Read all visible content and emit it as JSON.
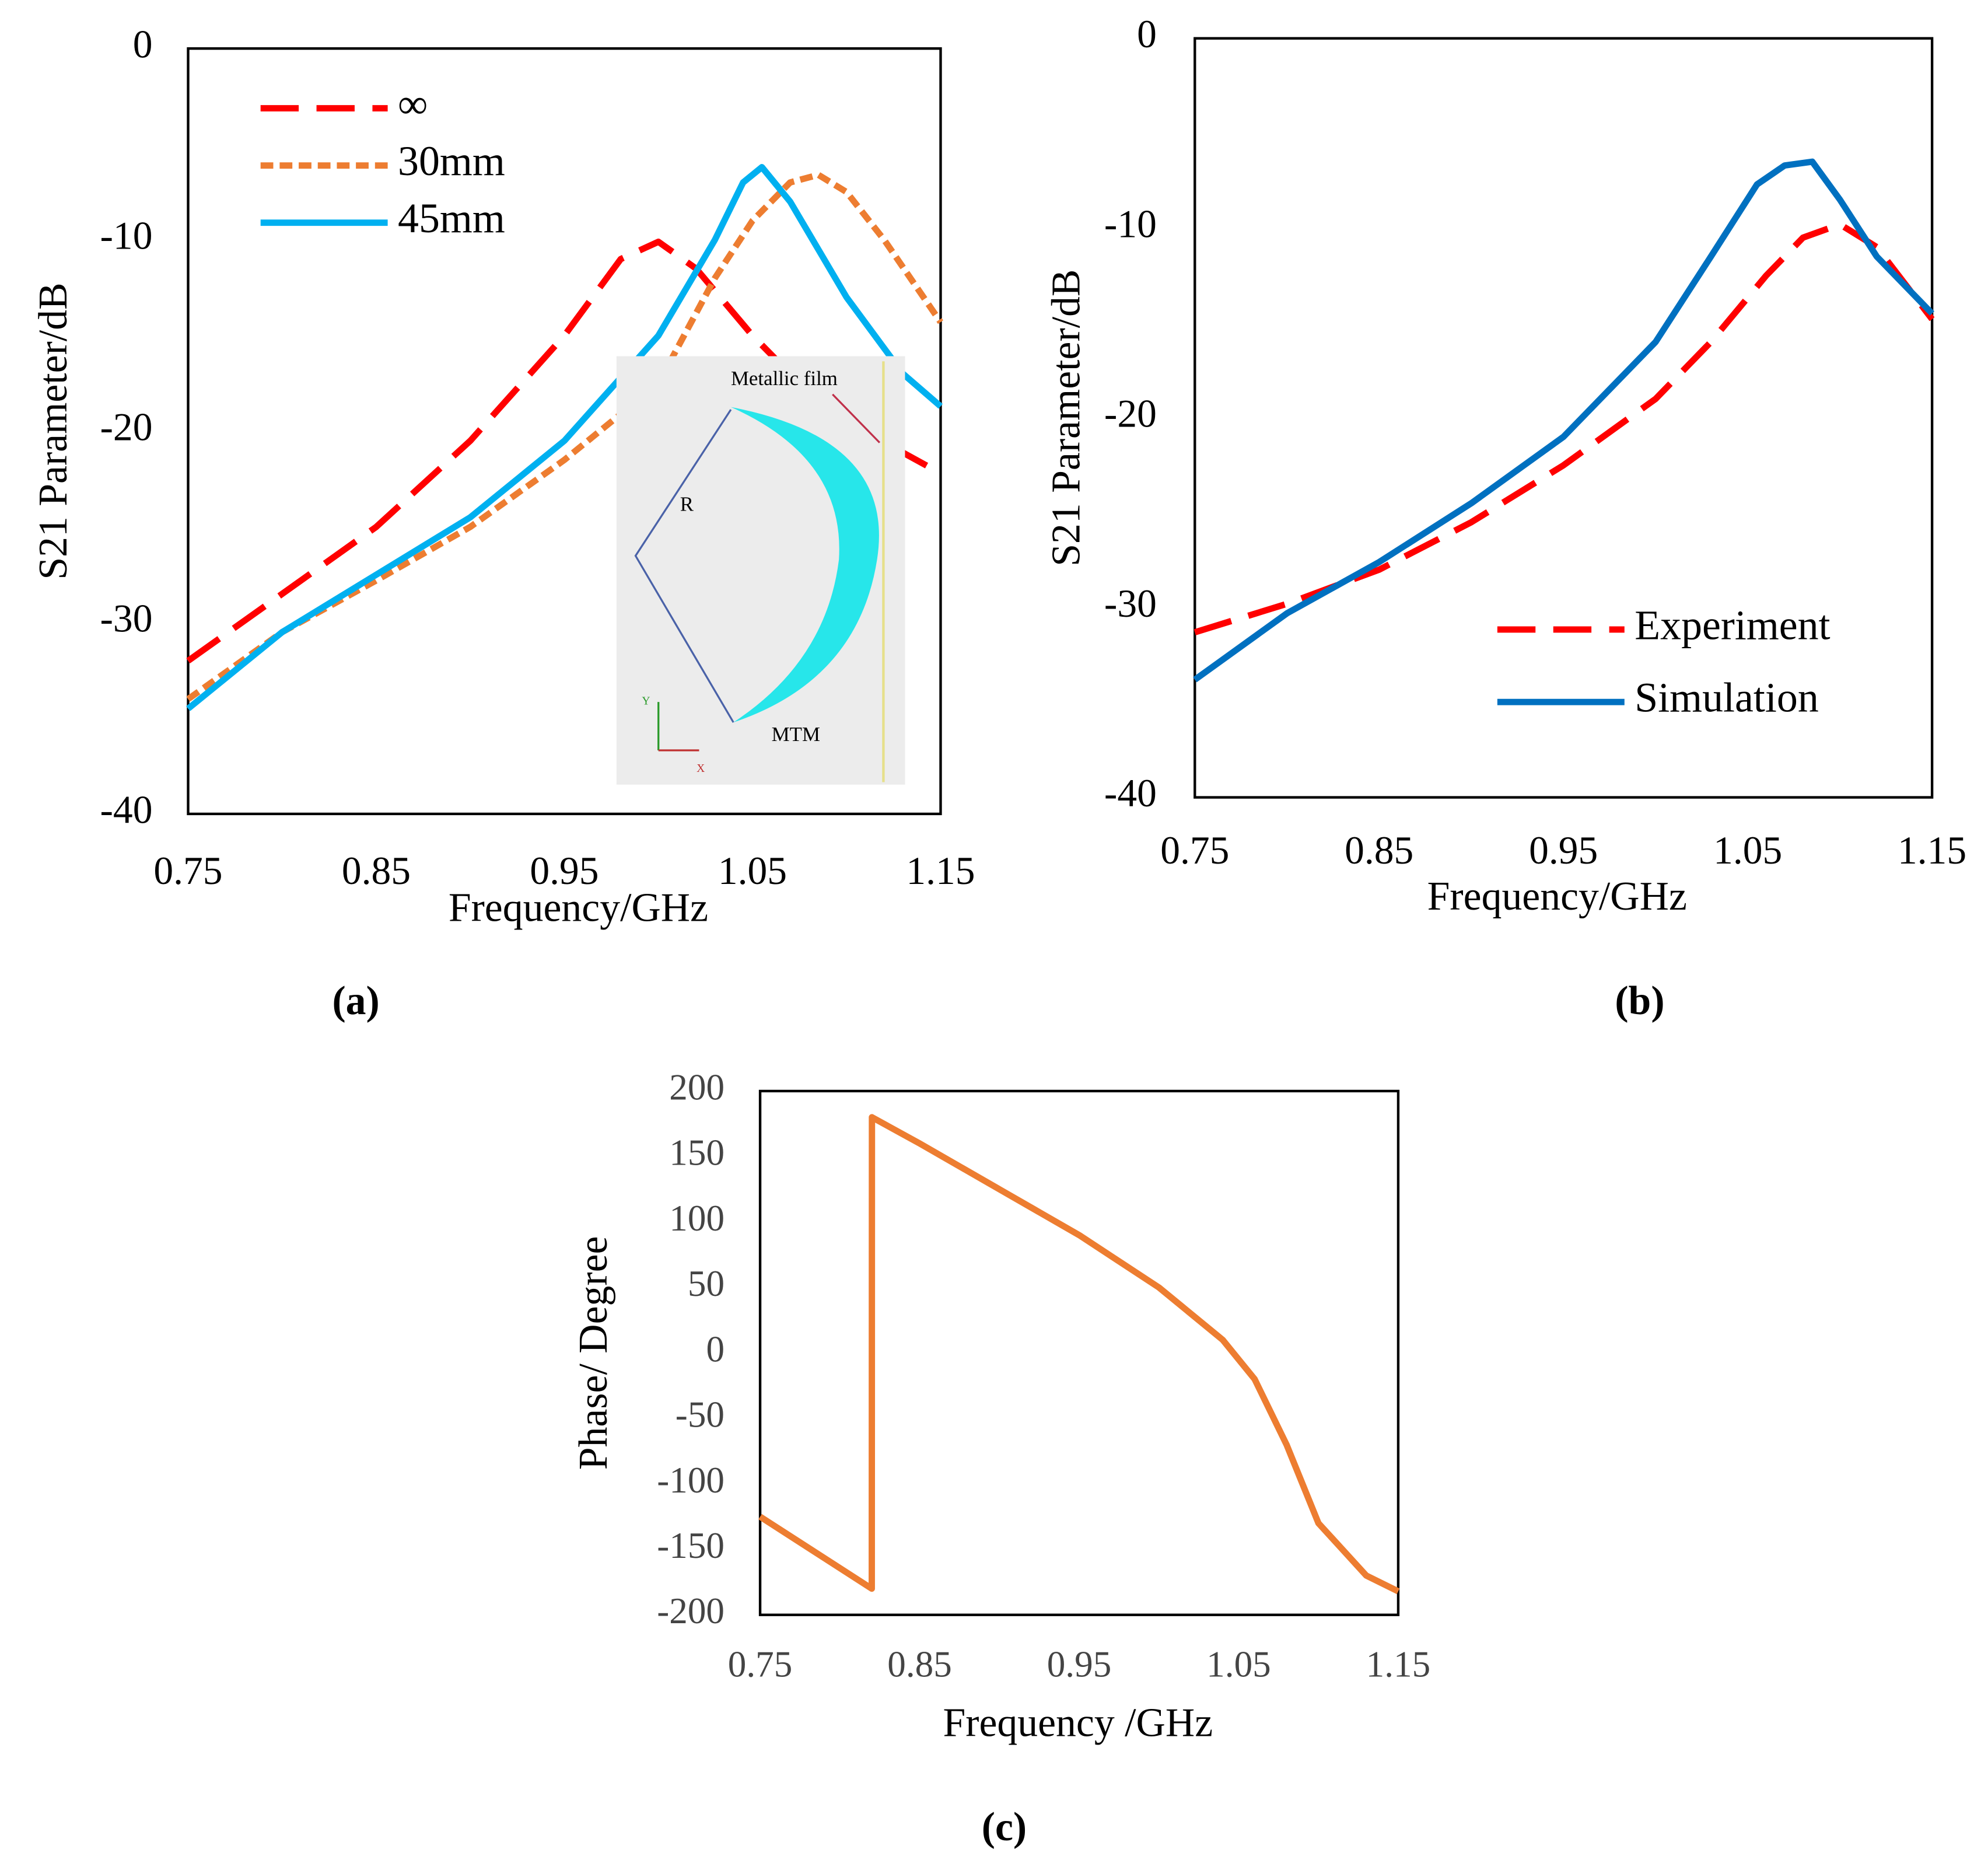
{
  "chart_data": [
    {
      "type": "line",
      "caption": "(a)",
      "y_label": "S21 Parameter/dB",
      "x_label": "Frequency/GHz",
      "xlim": [
        0.75,
        1.15
      ],
      "xticks": [
        0.75,
        0.85,
        0.95,
        1.05,
        1.15
      ],
      "ylim": [
        -40,
        0
      ],
      "yticks": [
        0,
        -10,
        -20,
        -30,
        -40
      ],
      "legend": "top-left",
      "annotations": [
        "Metallic film",
        "R",
        "MTM",
        "Y",
        "X"
      ],
      "series": [
        {
          "name": "∞",
          "color": "#ff0000",
          "dash": "dashed",
          "x": [
            0.75,
            0.8,
            0.85,
            0.9,
            0.95,
            0.98,
            1.0,
            1.02,
            1.05,
            1.08,
            1.1,
            1.15
          ],
          "values": [
            -32,
            -28.5,
            -25,
            -20.5,
            -15,
            -11,
            -10.1,
            -11.5,
            -15,
            -18,
            -19.5,
            -22.2
          ]
        },
        {
          "name": "30mm",
          "color": "#ed7d31",
          "dash": "dotted",
          "x": [
            0.75,
            0.8,
            0.85,
            0.9,
            0.95,
            1.0,
            1.03,
            1.05,
            1.07,
            1.085,
            1.1,
            1.12,
            1.15
          ],
          "values": [
            -34,
            -30.5,
            -27.8,
            -25,
            -21.5,
            -17.5,
            -12,
            -9,
            -7,
            -6.6,
            -7.5,
            -10,
            -14.3
          ]
        },
        {
          "name": "45mm",
          "color": "#00b0f0",
          "dash": "solid",
          "x": [
            0.75,
            0.8,
            0.85,
            0.9,
            0.95,
            1.0,
            1.03,
            1.045,
            1.055,
            1.07,
            1.1,
            1.13,
            1.15
          ],
          "values": [
            -34.5,
            -30.5,
            -27.5,
            -24.5,
            -20.5,
            -15,
            -10,
            -7,
            -6.2,
            -8,
            -13,
            -17,
            -18.7
          ]
        }
      ]
    },
    {
      "type": "line",
      "caption": "(b)",
      "y_label": "S21 Parameter/dB",
      "x_label": "Frequency/GHz",
      "xlim": [
        0.75,
        1.15
      ],
      "xticks": [
        0.75,
        0.85,
        0.95,
        1.05,
        1.15
      ],
      "ylim": [
        -40,
        0
      ],
      "yticks": [
        0,
        -10,
        -20,
        -30,
        -40
      ],
      "legend": "bottom-right",
      "series": [
        {
          "name": "Experiment",
          "color": "#ff0000",
          "dash": "dashed",
          "x": [
            0.75,
            0.8,
            0.85,
            0.9,
            0.95,
            1.0,
            1.03,
            1.06,
            1.08,
            1.1,
            1.12,
            1.15
          ],
          "values": [
            -31.3,
            -29.8,
            -28,
            -25.5,
            -22.5,
            -19,
            -16,
            -12.5,
            -10.5,
            -9.8,
            -11,
            -14.8
          ]
        },
        {
          "name": "Simulation",
          "color": "#0070c0",
          "dash": "solid",
          "x": [
            0.75,
            0.8,
            0.85,
            0.9,
            0.95,
            1.0,
            1.03,
            1.055,
            1.07,
            1.085,
            1.1,
            1.12,
            1.15
          ],
          "values": [
            -33.8,
            -30.3,
            -27.6,
            -24.5,
            -21,
            -16,
            -11.5,
            -7.7,
            -6.7,
            -6.5,
            -8.5,
            -11.5,
            -14.5
          ]
        }
      ]
    },
    {
      "type": "line",
      "caption": "(c)",
      "y_label": "Phase/ Degree",
      "x_label": "Frequency /GHz",
      "xlim": [
        0.75,
        1.15
      ],
      "xticks": [
        0.75,
        0.85,
        0.95,
        1.05,
        1.15
      ],
      "ylim": [
        -200,
        200
      ],
      "yticks": [
        200,
        150,
        100,
        50,
        0,
        -50,
        -100,
        -150,
        -200
      ],
      "color": "#ed7d31",
      "x": [
        0.75,
        0.82,
        0.8201,
        0.85,
        0.9,
        0.95,
        1.0,
        1.04,
        1.06,
        1.08,
        1.1,
        1.13,
        1.15
      ],
      "values": [
        -125,
        -180,
        180,
        160,
        125,
        90,
        50,
        10,
        -20,
        -70,
        -130,
        -170,
        -182
      ]
    }
  ]
}
